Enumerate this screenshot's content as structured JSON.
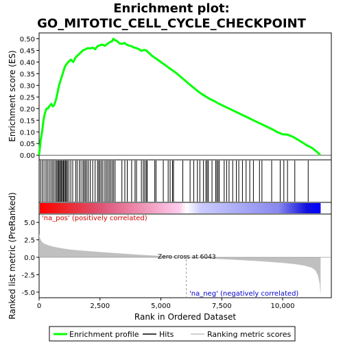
{
  "title_line1": "Enrichment plot:",
  "title_line2": "GO_MITOTIC_CELL_CYCLE_CHECKPOINT",
  "es_axis_label": "Enrichment score (ES)",
  "metric_axis_label": "Ranked list metric (PreRanked)",
  "x_axis_label": "Rank in Ordered Dataset",
  "pos_label": "'na_pos' (positively correlated)",
  "neg_label": "'na_neg' (negatively correlated)",
  "zero_cross_label": "Zero cross at 6043",
  "legend": {
    "enrichment_profile": "Enrichment profile",
    "hits": "Hits",
    "ranking_metric": "Ranking metric scores"
  },
  "colors": {
    "enrichment_line": "#00ff00",
    "hits": "#000000",
    "metric_fill": "#c0c0c0",
    "pos_band": "#ff0000",
    "neg_band": "#0000ff"
  },
  "chart_data": [
    {
      "type": "line",
      "name": "enrichment",
      "xlim": [
        0,
        12000
      ],
      "ylim": [
        -0.02,
        0.525
      ],
      "yticks": [
        0.0,
        0.05,
        0.1,
        0.15,
        0.2,
        0.25,
        0.3,
        0.35,
        0.4,
        0.45,
        0.5
      ],
      "ytick_labels": [
        "0.00",
        "0.05",
        "0.10",
        "0.15",
        "0.20",
        "0.25",
        "0.30",
        "0.35",
        "0.40",
        "0.45",
        "0.50"
      ],
      "x": [
        0,
        60,
        120,
        180,
        240,
        300,
        360,
        420,
        500,
        560,
        620,
        700,
        760,
        820,
        880,
        940,
        1000,
        1060,
        1120,
        1200,
        1300,
        1400,
        1500,
        1600,
        1700,
        1800,
        1900,
        2000,
        2100,
        2200,
        2300,
        2400,
        2500,
        2600,
        2700,
        2800,
        2900,
        3000,
        3050,
        3100,
        3200,
        3300,
        3400,
        3500,
        3600,
        3700,
        3800,
        3900,
        4000,
        4100,
        4200,
        4300,
        4400,
        4500,
        4600,
        4700,
        4800,
        5000,
        5200,
        5400,
        5600,
        5800,
        6000,
        6200,
        6400,
        6600,
        6800,
        7000,
        7200,
        7400,
        7600,
        7800,
        8000,
        8200,
        8400,
        8600,
        8800,
        9000,
        9200,
        9400,
        9600,
        9800,
        10000,
        10200,
        10400,
        10600,
        10800,
        11000,
        11200,
        11400,
        11550
      ],
      "y": [
        0.0,
        0.06,
        0.1,
        0.15,
        0.18,
        0.2,
        0.2,
        0.21,
        0.22,
        0.21,
        0.215,
        0.24,
        0.27,
        0.3,
        0.32,
        0.34,
        0.36,
        0.38,
        0.39,
        0.4,
        0.41,
        0.4,
        0.42,
        0.43,
        0.44,
        0.45,
        0.455,
        0.46,
        0.458,
        0.462,
        0.455,
        0.468,
        0.472,
        0.475,
        0.47,
        0.478,
        0.485,
        0.49,
        0.5,
        0.495,
        0.49,
        0.48,
        0.478,
        0.482,
        0.475,
        0.47,
        0.468,
        0.462,
        0.46,
        0.455,
        0.448,
        0.452,
        0.45,
        0.44,
        0.43,
        0.422,
        0.415,
        0.4,
        0.385,
        0.37,
        0.355,
        0.338,
        0.32,
        0.302,
        0.285,
        0.268,
        0.255,
        0.242,
        0.232,
        0.22,
        0.21,
        0.2,
        0.19,
        0.18,
        0.17,
        0.16,
        0.15,
        0.14,
        0.13,
        0.12,
        0.11,
        0.098,
        0.09,
        0.088,
        0.08,
        0.068,
        0.055,
        0.042,
        0.032,
        0.015,
        0.0
      ]
    },
    {
      "type": "scatter",
      "name": "hits",
      "x": [
        60,
        130,
        200,
        280,
        340,
        410,
        480,
        540,
        600,
        660,
        720,
        760,
        800,
        840,
        880,
        920,
        960,
        1000,
        1040,
        1080,
        1120,
        1160,
        1220,
        1300,
        1380,
        1500,
        1560,
        1650,
        1720,
        1800,
        1850,
        1900,
        1960,
        2020,
        2100,
        2200,
        2300,
        2400,
        2450,
        2500,
        2560,
        2620,
        2700,
        2760,
        2820,
        2880,
        2940,
        3000,
        3060,
        3120,
        3400,
        3520,
        3620,
        3800,
        3940,
        4000,
        4200,
        4280,
        4340,
        4400,
        4440,
        4750,
        4800,
        5100,
        5300,
        5380,
        5480,
        5520,
        5900,
        6200,
        6350,
        6500,
        6600,
        6750,
        6850,
        6900,
        6950,
        7100,
        7250,
        7300,
        7350,
        7400,
        7600,
        7700,
        7800,
        7950,
        8100,
        8200,
        8350,
        8500,
        8650,
        8800,
        9050,
        9150,
        9550,
        9900,
        10050,
        10200,
        10500,
        11050
      ]
    },
    {
      "type": "area",
      "name": "ranking_metric",
      "xlim": [
        0,
        12000
      ],
      "ylim": [
        -5.8,
        6.2
      ],
      "yticks": [
        -5.0,
        -2.5,
        0.0,
        2.5,
        5.0
      ],
      "ytick_labels": [
        "-5.0",
        "-2.5",
        "0.0",
        "2.5",
        "5.0"
      ],
      "x": [
        0,
        30,
        80,
        150,
        250,
        400,
        600,
        900,
        1300,
        1800,
        2500,
        3300,
        4200,
        5200,
        6043,
        7000,
        8000,
        9000,
        10000,
        10500,
        10900,
        11200,
        11350,
        11450,
        11520,
        11560
      ],
      "y": [
        3.4,
        2.8,
        2.4,
        2.1,
        1.9,
        1.7,
        1.5,
        1.3,
        1.1,
        0.95,
        0.75,
        0.55,
        0.35,
        0.15,
        0.0,
        -0.18,
        -0.35,
        -0.55,
        -0.8,
        -0.98,
        -1.2,
        -1.5,
        -1.9,
        -2.6,
        -3.8,
        -5.5
      ]
    },
    {
      "type": "bar",
      "name": "rank_axis",
      "xticks": [
        0,
        2500,
        5000,
        7500,
        10000
      ],
      "xtick_labels": [
        "0",
        "2,500",
        "5,000",
        "7,500",
        "10,000"
      ],
      "zero_cross": 6043,
      "n_ranks": 11560
    }
  ]
}
